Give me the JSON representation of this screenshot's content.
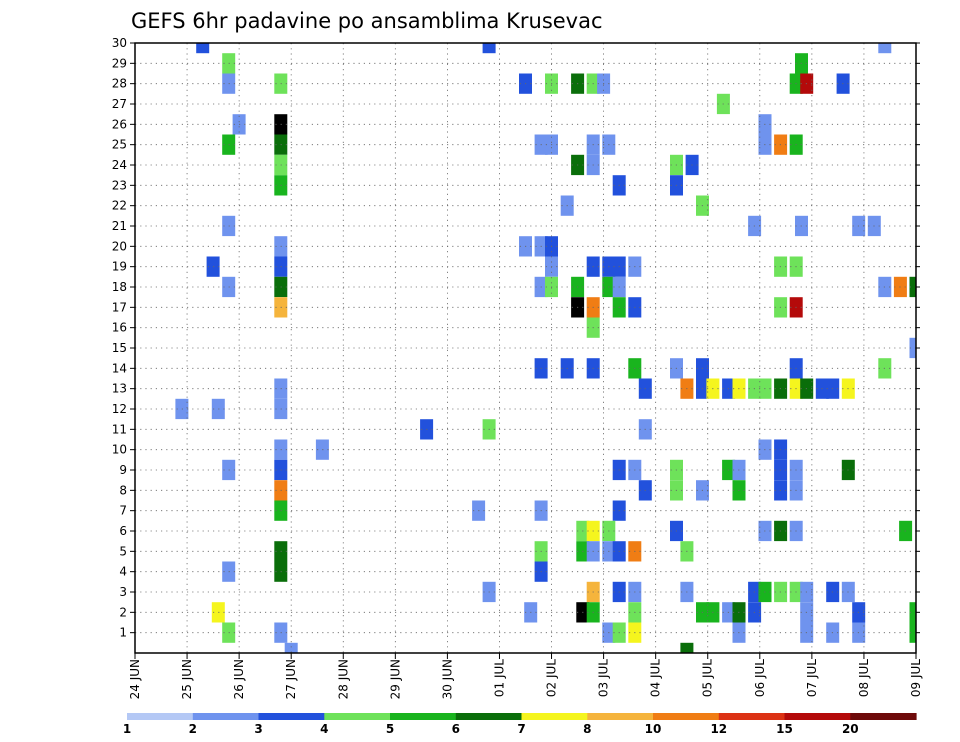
{
  "chart_data": {
    "type": "heatmap",
    "title": "GEFS 6hr padavine po ansamblima Krusevac",
    "xlabel": "",
    "ylabel": "",
    "x_ticks": [
      "24 JUN",
      "25 JUN",
      "26 JUN",
      "27 JUN",
      "28 JUN",
      "29 JUN",
      "30 JUN",
      "01 JUL",
      "02 JUL",
      "03 JUL",
      "04 JUL",
      "05 JUL",
      "06 JUL",
      "07 JUL",
      "08 JUL",
      "09 JUL"
    ],
    "x_range_days": [
      0,
      15
    ],
    "y_ticks": [
      1,
      2,
      3,
      4,
      5,
      6,
      7,
      8,
      9,
      10,
      11,
      12,
      13,
      14,
      15,
      16,
      17,
      18,
      19,
      20,
      21,
      22,
      23,
      24,
      25,
      26,
      27,
      28,
      29,
      30
    ],
    "y_range": [
      0,
      30
    ],
    "grid": true,
    "legend_placement": "bottom",
    "legend": {
      "labels": [
        "1",
        "2",
        "3",
        "4",
        "5",
        "6",
        "7",
        "8",
        "10",
        "12",
        "15",
        "20"
      ],
      "colors": [
        "#b4c8f5",
        "#6f93ee",
        "#2251dc",
        "#6ee25a",
        "#19b41e",
        "#0a6e0a",
        "#f5f51e",
        "#f5b43c",
        "#f07d14",
        "#dc3214",
        "#b40a0a",
        "#6e0a0a"
      ]
    },
    "cells": [
      [
        30,
        1.3,
        2
      ],
      [
        30,
        6.8,
        2
      ],
      [
        30,
        14.4,
        1
      ],
      [
        29,
        1.8,
        3
      ],
      [
        29,
        12.8,
        4
      ],
      [
        28,
        1.8,
        1
      ],
      [
        28,
        2.8,
        3
      ],
      [
        28,
        7.5,
        2
      ],
      [
        28,
        8.0,
        3
      ],
      [
        28,
        8.5,
        5
      ],
      [
        28,
        8.8,
        3
      ],
      [
        28,
        9.0,
        1
      ],
      [
        28,
        12.7,
        4
      ],
      [
        28,
        12.9,
        10
      ],
      [
        28,
        13.6,
        2
      ],
      [
        27,
        11.3,
        3
      ],
      [
        26,
        2.0,
        1
      ],
      [
        26,
        2.8,
        15
      ],
      [
        26,
        12.1,
        1
      ],
      [
        25,
        1.8,
        4
      ],
      [
        25,
        2.8,
        5
      ],
      [
        25,
        7.8,
        1
      ],
      [
        25,
        8.0,
        1
      ],
      [
        25,
        8.8,
        1
      ],
      [
        25,
        9.1,
        1
      ],
      [
        25,
        12.1,
        1
      ],
      [
        25,
        12.4,
        8
      ],
      [
        25,
        12.7,
        4
      ],
      [
        24,
        2.8,
        3
      ],
      [
        24,
        8.5,
        5
      ],
      [
        24,
        8.8,
        1
      ],
      [
        24,
        10.4,
        3
      ],
      [
        24,
        10.7,
        2
      ],
      [
        23,
        2.8,
        4
      ],
      [
        23,
        9.3,
        2
      ],
      [
        23,
        10.4,
        2
      ],
      [
        22,
        8.3,
        1
      ],
      [
        22,
        10.9,
        3
      ],
      [
        21,
        1.8,
        1
      ],
      [
        21,
        11.9,
        1
      ],
      [
        21,
        12.8,
        1
      ],
      [
        21,
        13.9,
        1
      ],
      [
        21,
        14.2,
        1
      ],
      [
        20,
        2.8,
        1
      ],
      [
        20,
        7.5,
        1
      ],
      [
        20,
        7.8,
        1
      ],
      [
        20,
        8.0,
        2
      ],
      [
        19,
        1.5,
        2
      ],
      [
        19,
        2.8,
        2
      ],
      [
        19,
        8.0,
        1
      ],
      [
        19,
        8.8,
        2
      ],
      [
        19,
        9.1,
        2
      ],
      [
        19,
        9.3,
        2
      ],
      [
        19,
        9.6,
        1
      ],
      [
        19,
        12.4,
        3
      ],
      [
        19,
        12.7,
        3
      ],
      [
        18,
        1.8,
        1
      ],
      [
        18,
        2.8,
        5
      ],
      [
        18,
        7.8,
        1
      ],
      [
        18,
        8.0,
        3
      ],
      [
        18,
        8.5,
        4
      ],
      [
        18,
        9.1,
        4
      ],
      [
        18,
        9.3,
        1
      ],
      [
        18,
        14.4,
        1
      ],
      [
        18,
        14.7,
        8
      ],
      [
        18,
        15.0,
        5
      ],
      [
        17,
        2.8,
        7
      ],
      [
        17,
        8.5,
        20
      ],
      [
        17,
        8.8,
        8
      ],
      [
        17,
        9.3,
        4
      ],
      [
        17,
        9.6,
        2
      ],
      [
        17,
        12.4,
        3
      ],
      [
        17,
        12.7,
        10
      ],
      [
        16,
        8.8,
        3
      ],
      [
        15,
        15.0,
        1
      ],
      [
        14,
        7.8,
        2
      ],
      [
        14,
        8.3,
        2
      ],
      [
        14,
        8.8,
        2
      ],
      [
        14,
        9.6,
        4
      ],
      [
        14,
        10.4,
        1
      ],
      [
        14,
        10.9,
        2
      ],
      [
        14,
        12.7,
        2
      ],
      [
        14,
        14.4,
        3
      ],
      [
        13,
        2.8,
        1
      ],
      [
        13,
        9.8,
        2
      ],
      [
        13,
        10.6,
        8
      ],
      [
        13,
        10.9,
        2
      ],
      [
        13,
        11.1,
        6
      ],
      [
        13,
        11.4,
        2
      ],
      [
        13,
        11.6,
        6
      ],
      [
        13,
        11.9,
        3
      ],
      [
        13,
        12.1,
        3
      ],
      [
        13,
        12.4,
        5
      ],
      [
        13,
        12.7,
        6
      ],
      [
        13,
        12.9,
        5
      ],
      [
        13,
        13.2,
        2
      ],
      [
        13,
        13.4,
        2
      ],
      [
        13,
        13.7,
        6
      ],
      [
        12,
        0.9,
        1
      ],
      [
        12,
        1.6,
        1
      ],
      [
        12,
        2.8,
        1
      ],
      [
        11,
        5.6,
        2
      ],
      [
        11,
        6.8,
        3
      ],
      [
        11,
        9.8,
        1
      ],
      [
        10,
        2.8,
        1
      ],
      [
        10,
        3.6,
        1
      ],
      [
        10,
        12.1,
        1
      ],
      [
        10,
        12.4,
        2
      ],
      [
        9,
        1.8,
        1
      ],
      [
        9,
        2.8,
        2
      ],
      [
        9,
        9.3,
        2
      ],
      [
        9,
        9.6,
        1
      ],
      [
        9,
        10.4,
        3
      ],
      [
        9,
        11.4,
        4
      ],
      [
        9,
        11.6,
        1
      ],
      [
        9,
        12.4,
        2
      ],
      [
        9,
        12.7,
        1
      ],
      [
        9,
        13.7,
        5
      ],
      [
        8,
        2.8,
        8
      ],
      [
        8,
        9.8,
        2
      ],
      [
        8,
        10.4,
        3
      ],
      [
        8,
        10.9,
        1
      ],
      [
        8,
        11.6,
        4
      ],
      [
        8,
        12.4,
        2
      ],
      [
        8,
        12.7,
        1
      ],
      [
        7,
        2.8,
        4
      ],
      [
        7,
        6.6,
        1
      ],
      [
        7,
        7.8,
        1
      ],
      [
        7,
        9.3,
        2
      ],
      [
        6,
        8.6,
        3
      ],
      [
        6,
        8.8,
        6
      ],
      [
        6,
        9.1,
        3
      ],
      [
        6,
        10.4,
        2
      ],
      [
        6,
        12.1,
        1
      ],
      [
        6,
        12.4,
        5
      ],
      [
        6,
        12.7,
        1
      ],
      [
        6,
        14.8,
        4
      ],
      [
        5,
        2.8,
        5
      ],
      [
        5,
        7.8,
        3
      ],
      [
        5,
        8.6,
        4
      ],
      [
        5,
        8.8,
        1
      ],
      [
        5,
        9.1,
        1
      ],
      [
        5,
        9.3,
        2
      ],
      [
        5,
        9.6,
        8
      ],
      [
        5,
        10.6,
        3
      ],
      [
        4,
        1.8,
        1
      ],
      [
        4,
        2.8,
        5
      ],
      [
        4,
        7.8,
        2
      ],
      [
        3,
        6.8,
        1
      ],
      [
        3,
        8.8,
        7
      ],
      [
        3,
        9.3,
        2
      ],
      [
        3,
        9.6,
        1
      ],
      [
        3,
        10.6,
        1
      ],
      [
        3,
        11.9,
        2
      ],
      [
        3,
        12.1,
        4
      ],
      [
        3,
        12.4,
        3
      ],
      [
        3,
        12.7,
        3
      ],
      [
        3,
        12.9,
        1
      ],
      [
        3,
        13.4,
        2
      ],
      [
        3,
        13.7,
        1
      ],
      [
        2,
        1.6,
        6
      ],
      [
        2,
        7.6,
        1
      ],
      [
        2,
        8.6,
        15
      ],
      [
        2,
        8.8,
        4
      ],
      [
        2,
        9.6,
        3
      ],
      [
        2,
        10.9,
        4
      ],
      [
        2,
        11.1,
        4
      ],
      [
        2,
        11.4,
        1
      ],
      [
        2,
        11.6,
        5
      ],
      [
        2,
        11.9,
        2
      ],
      [
        2,
        12.9,
        1
      ],
      [
        2,
        13.9,
        2
      ],
      [
        2,
        15.0,
        4
      ],
      [
        1,
        1.8,
        3
      ],
      [
        1,
        2.8,
        1
      ],
      [
        1,
        9.1,
        1
      ],
      [
        1,
        9.3,
        3
      ],
      [
        1,
        9.6,
        6
      ],
      [
        1,
        11.6,
        1
      ],
      [
        1,
        12.9,
        1
      ],
      [
        1,
        13.4,
        1
      ],
      [
        1,
        13.9,
        1
      ],
      [
        1,
        15.0,
        4
      ],
      [
        0,
        3.0,
        1
      ],
      [
        0,
        10.6,
        5
      ]
    ]
  }
}
